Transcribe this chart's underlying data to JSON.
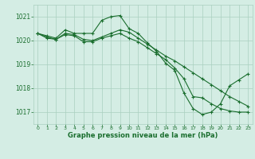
{
  "x": [
    0,
    1,
    2,
    3,
    4,
    5,
    6,
    7,
    8,
    9,
    10,
    11,
    12,
    13,
    14,
    15,
    16,
    17,
    18,
    19,
    20,
    21,
    22,
    23
  ],
  "line1": [
    1020.3,
    1020.2,
    1020.1,
    1020.45,
    1020.3,
    1020.3,
    1020.3,
    1020.85,
    1021.0,
    1021.05,
    1020.5,
    1020.3,
    1019.9,
    1019.55,
    1019.05,
    1018.75,
    1017.8,
    1017.15,
    1016.9,
    1017.0,
    1017.35,
    1018.1,
    1018.35,
    1018.6
  ],
  "line2": [
    1020.3,
    1020.15,
    1020.05,
    1020.3,
    1020.25,
    1020.05,
    1020.0,
    1020.15,
    1020.3,
    1020.45,
    1020.35,
    1020.1,
    1019.85,
    1019.6,
    1019.35,
    1019.15,
    1018.9,
    1018.65,
    1018.4,
    1018.15,
    1017.9,
    1017.65,
    1017.45,
    1017.25
  ],
  "line3": [
    1020.3,
    1020.1,
    1020.05,
    1020.25,
    1020.2,
    1019.95,
    1019.95,
    1020.1,
    1020.2,
    1020.3,
    1020.1,
    1019.95,
    1019.7,
    1019.45,
    1019.2,
    1018.85,
    1018.4,
    1017.65,
    1017.6,
    1017.35,
    1017.15,
    1017.05,
    1017.0,
    1017.0
  ],
  "bg_color": "#d4ede4",
  "grid_color": "#aad0c0",
  "line_color": "#1a6e2e",
  "xlabel": "Graphe pression niveau de la mer (hPa)",
  "ylim_min": 1016.5,
  "ylim_max": 1021.5,
  "yticks": [
    1017,
    1018,
    1019,
    1020,
    1021
  ],
  "xticks": [
    0,
    1,
    2,
    3,
    4,
    5,
    6,
    7,
    8,
    9,
    10,
    11,
    12,
    13,
    14,
    15,
    16,
    17,
    18,
    19,
    20,
    21,
    22,
    23
  ]
}
